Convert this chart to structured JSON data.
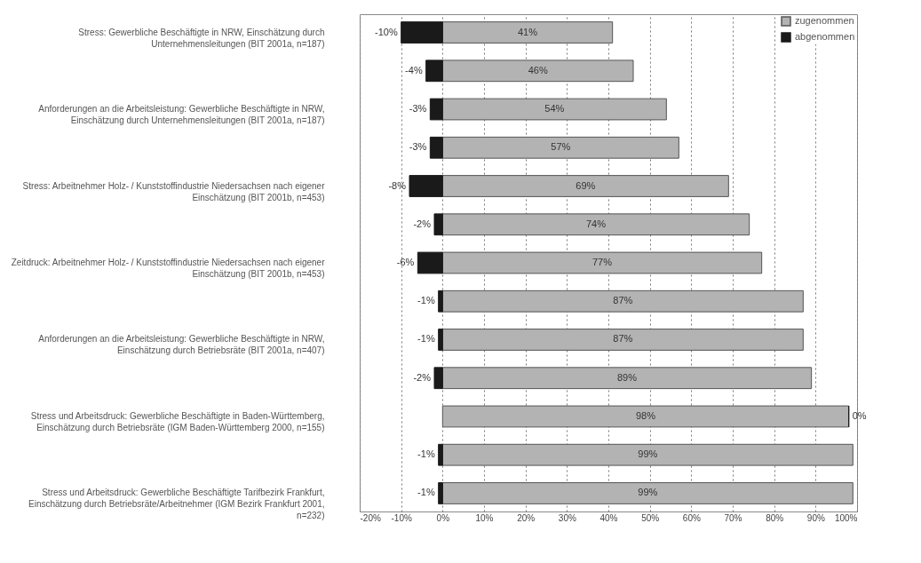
{
  "chart_data": {
    "type": "bar",
    "orientation": "horizontal",
    "stacked": true,
    "categories": [
      "Stress: Gewerbliche Beschäftigte in NRW, Einschätzung durch Unternehmensleitungen (BIT 2001a, n=187)",
      null,
      "Anforderungen an die Arbeitsleistung: Gewerbliche Beschäftigte in NRW, Einschätzung durch Unternehmensleitungen (BIT 2001a, n=187)",
      null,
      "Stress: Arbeitnehmer Holz- / Kunststoffindustrie Niedersachsen nach eigener Einschätzung (BIT 2001b, n=453)",
      null,
      "Zeitdruck: Arbeitnehmer Holz- / Kunststoffindustrie Niedersachsen nach eigener Einschätzung (BIT 2001b, n=453)",
      null,
      "Anforderungen an die Arbeitsleistung: Gewerbliche Beschäftigte in NRW, Einschätzung durch Betriebsräte (BIT 2001a, n=407)",
      null,
      "Stress und Arbeitsdruck: Gewerbliche Beschäftigte in Baden-Württemberg, Einschätzung durch Betriebsräte (IGM Baden-Württemberg 2000, n=155)",
      null,
      "Stress und Arbeitsdruck: Gewerbliche Beschäftigte Tarifbezirk Frankfurt, Einschätzung durch Betriebsräte/Arbeitnehmer (IGM Bezirk Frankfurt 2001, n=232)"
    ],
    "series": [
      {
        "name": "zugenommen",
        "color": "#b3b3b3",
        "values": [
          41,
          46,
          54,
          57,
          69,
          74,
          77,
          87,
          87,
          89,
          98,
          99,
          99
        ],
        "value_labels": [
          "41%",
          "46%",
          "54%",
          "57%",
          "69%",
          "74%",
          "77%",
          "87%",
          "87%",
          "89%",
          "98%",
          "99%",
          "99%"
        ]
      },
      {
        "name": "abgenommen",
        "color": "#1a1a1a",
        "values": [
          -10,
          -4,
          -3,
          -3,
          -8,
          -2,
          -6,
          -1,
          -1,
          -2,
          0,
          -1,
          -1
        ],
        "value_labels": [
          "-10%",
          "-4%",
          "-3%",
          "-3%",
          "-8%",
          "-2%",
          "-6%",
          "-1%",
          "-1%",
          "-2%",
          "0%",
          "-1%",
          "-1%"
        ]
      }
    ],
    "xlim": [
      -20,
      100
    ],
    "xticks": [
      {
        "value": -20,
        "label": "-20%"
      },
      {
        "value": -10,
        "label": "-10%"
      },
      {
        "value": 0,
        "label": "0%"
      },
      {
        "value": 10,
        "label": "10%"
      },
      {
        "value": 20,
        "label": "20%"
      },
      {
        "value": 30,
        "label": "30%"
      },
      {
        "value": 40,
        "label": "40%"
      },
      {
        "value": 50,
        "label": "50%"
      },
      {
        "value": 60,
        "label": "60%"
      },
      {
        "value": 70,
        "label": "70%"
      },
      {
        "value": 80,
        "label": "80%"
      },
      {
        "value": 90,
        "label": "90%"
      },
      {
        "value": 100,
        "label": "100%"
      }
    ],
    "grid": "x",
    "legend": "top right"
  }
}
